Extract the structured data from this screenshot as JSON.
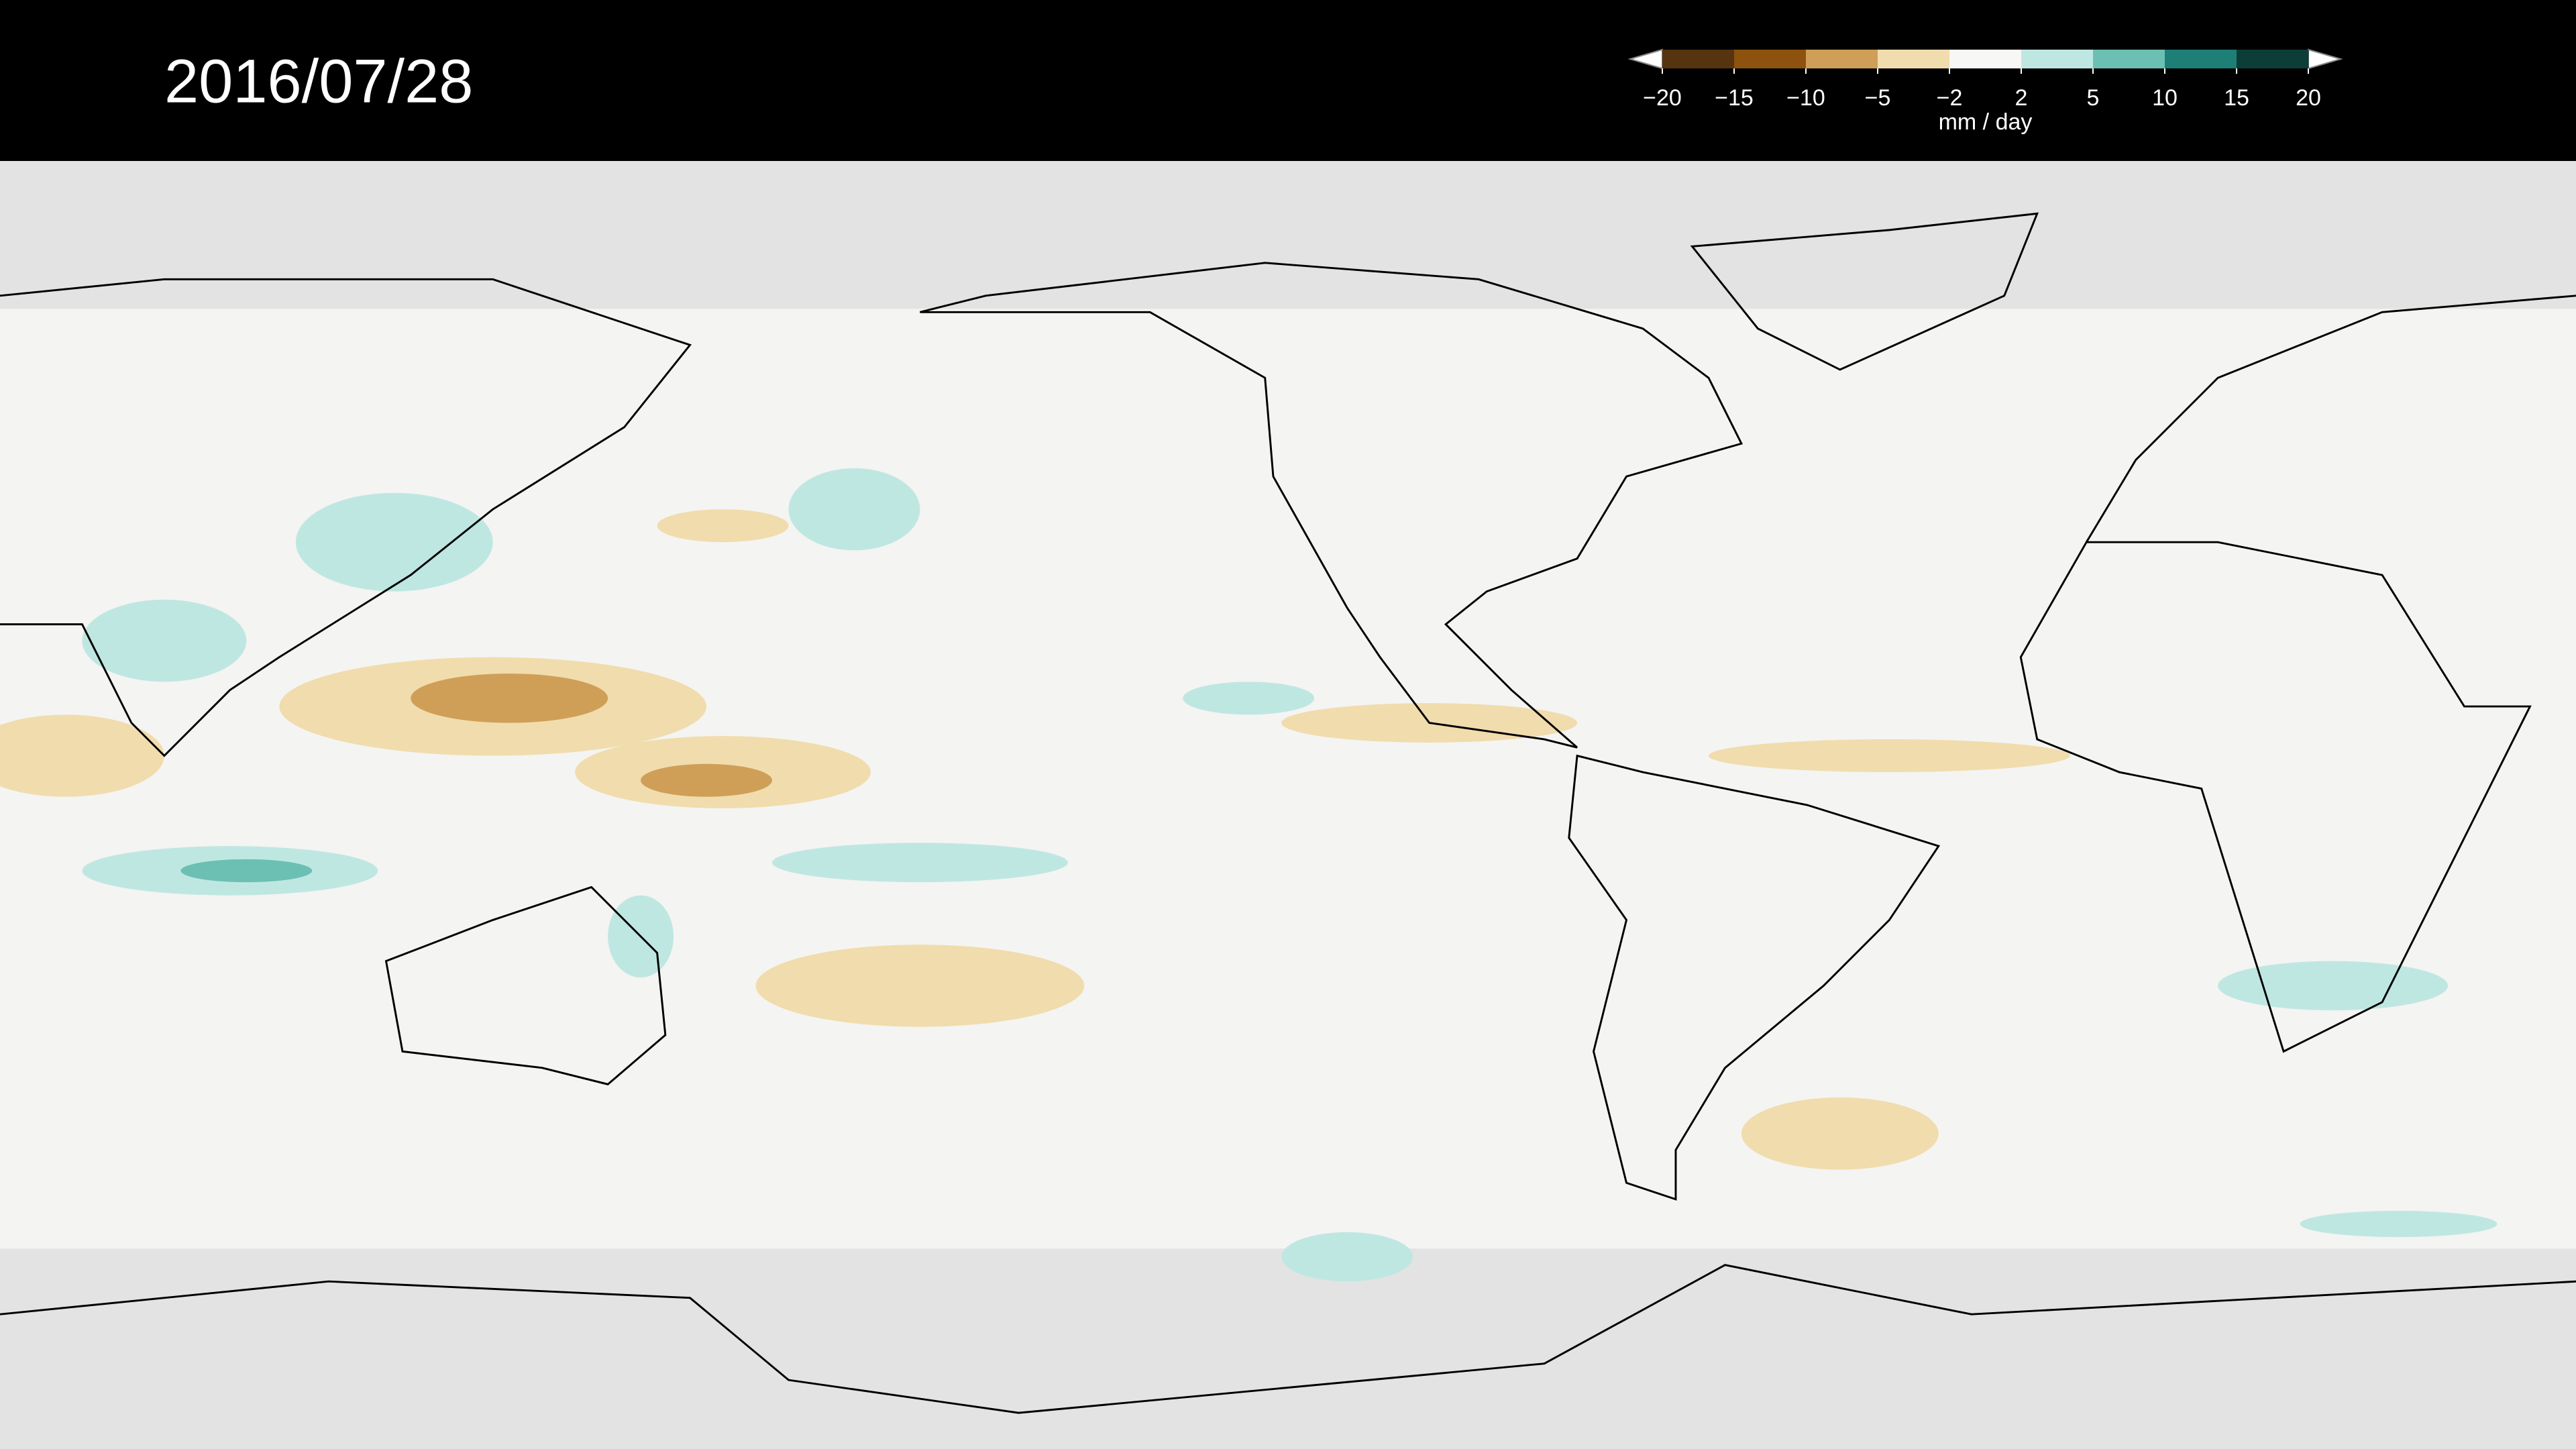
{
  "title": "2016/07/28",
  "colorbar": {
    "label": "mm / day",
    "ticks": [
      {
        "value": -20,
        "label": "−20"
      },
      {
        "value": -15,
        "label": "−15"
      },
      {
        "value": -10,
        "label": "−10"
      },
      {
        "value": -5,
        "label": "−5"
      },
      {
        "value": -2,
        "label": "−2"
      },
      2,
      5,
      10,
      15,
      20
    ],
    "colors": [
      "#563410",
      "#8c520e",
      "#cf9f58",
      "#f1dcad",
      "#f7f7f5",
      "#bfe7e1",
      "#6cbfb3",
      "#1d7f76",
      "#0c3e37"
    ],
    "extend_color": "#ffffff"
  }
}
